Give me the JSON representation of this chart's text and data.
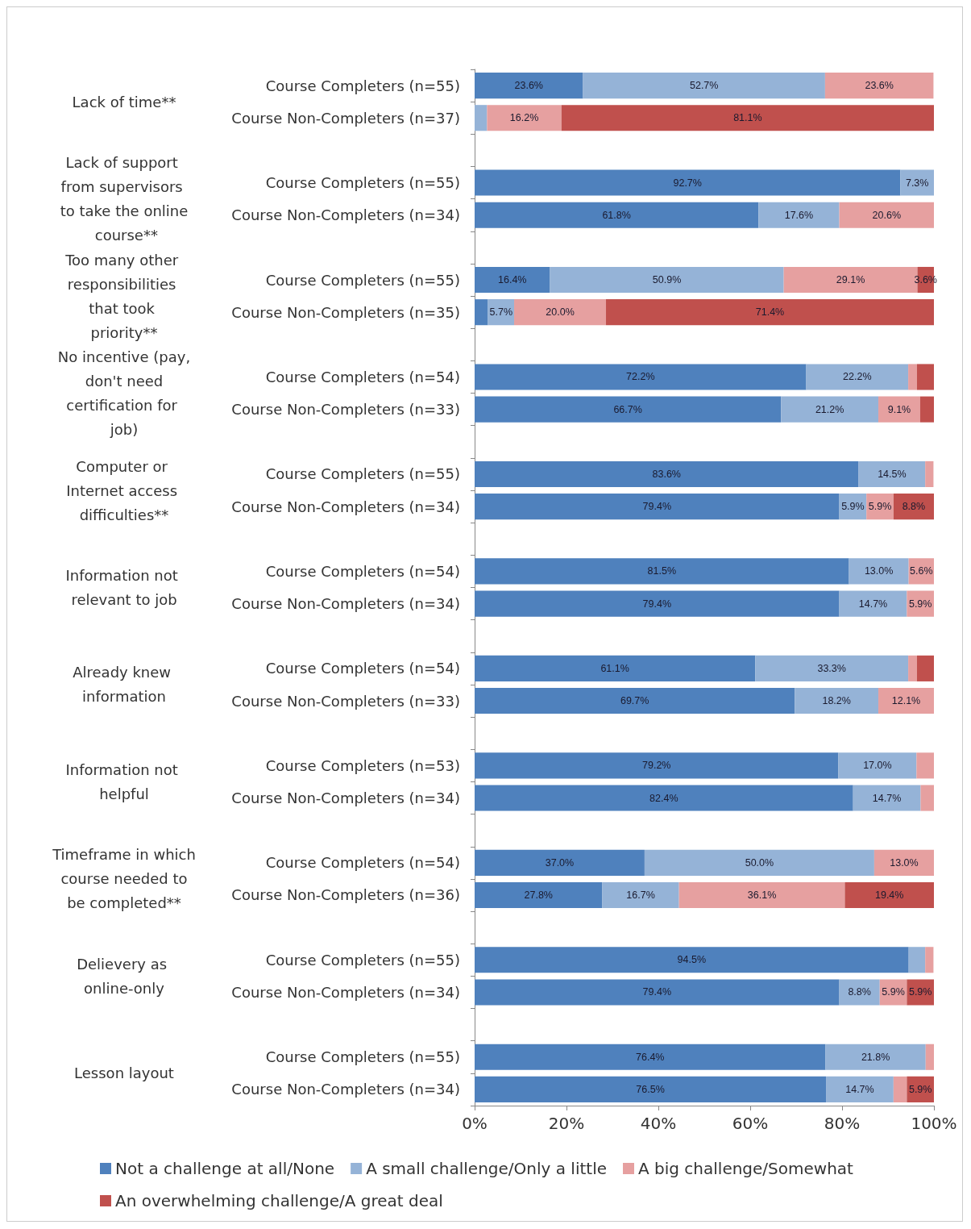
{
  "chart_data": {
    "type": "bar",
    "orientation": "horizontal",
    "stacked": true,
    "categories": [
      "Course Completers (n=55)",
      "Course Non-Completers (n=37)",
      null,
      "Course Completers (n=55)",
      "Course Non-Completers (n=34)",
      null,
      "Course Completers (n=55)",
      "Course Non-Completers (n=35)",
      null,
      "Course Completers (n=54)",
      "Course Non-Completers (n=33)",
      null,
      "Course Completers (n=55)",
      "Course Non-Completers (n=34)",
      null,
      "Course Completers (n=54)",
      "Course Non-Completers (n=34)",
      null,
      "Course Completers (n=54)",
      "Course Non-Completers (n=33)",
      null,
      "Course Completers (n=53)",
      "Course Non-Completers (n=34)",
      null,
      "Course Completers (n=54)",
      "Course Non-Completers (n=36)",
      null,
      "Course Completers (n=55)",
      "Course Non-Completers (n=34)",
      null,
      "Course Completers (n=55)",
      "Course Non-Completers (n=34)"
    ],
    "annotations": [
      "Lack of time**",
      "Lack of support from supervisors to take the online course**",
      "Too many other responsibilities that took priority**",
      "No incentive (pay, don't need certification for job)",
      "Computer or Internet access difficulties**",
      "Information not relevant to job",
      "Already knew information",
      "Information not helpful",
      "Timeframe in which course needed to be completed**",
      "Delievery as online-only",
      "Lesson layout"
    ],
    "series": [
      {
        "name": "Not a challenge at all/None",
        "color": "#4f81bd",
        "values": [
          23.6,
          null,
          null,
          92.7,
          61.8,
          null,
          16.4,
          2.9,
          null,
          72.2,
          66.7,
          null,
          83.6,
          79.4,
          null,
          81.5,
          79.4,
          null,
          61.1,
          69.7,
          null,
          79.2,
          82.4,
          null,
          37.0,
          27.8,
          null,
          94.5,
          79.4,
          null,
          76.4,
          76.5
        ],
        "value_labels": [
          "23.6%",
          null,
          null,
          "92.7%",
          "61.8%",
          null,
          "16.4%",
          null,
          null,
          "72.2%",
          "66.7%",
          null,
          "83.6%",
          "79.4%",
          null,
          "81.5%",
          "79.4%",
          null,
          "61.1%",
          "69.7%",
          null,
          "79.2%",
          "82.4%",
          null,
          "37.0%",
          "27.8%",
          null,
          "94.5%",
          "79.4%",
          null,
          "76.4%",
          "76.5%"
        ]
      },
      {
        "name": "A small challenge/Only a little",
        "color": "#95b3d7",
        "values": [
          52.7,
          2.7,
          null,
          7.3,
          17.6,
          null,
          50.9,
          5.7,
          null,
          22.2,
          21.2,
          null,
          14.5,
          5.9,
          null,
          13.0,
          14.7,
          null,
          33.3,
          18.2,
          null,
          17.0,
          14.7,
          null,
          50.0,
          16.7,
          null,
          3.6,
          8.8,
          null,
          21.8,
          14.7
        ],
        "value_labels": [
          "52.7%",
          null,
          null,
          "7.3%",
          "17.6%",
          null,
          "50.9%",
          "5.7%",
          null,
          "22.2%",
          "21.2%",
          null,
          "14.5%",
          "5.9%",
          null,
          "13.0%",
          "14.7%",
          null,
          "33.3%",
          "18.2%",
          null,
          "17.0%",
          "14.7%",
          null,
          "50.0%",
          "16.7%",
          null,
          null,
          "8.8%",
          null,
          "21.8%",
          "14.7%"
        ]
      },
      {
        "name": "A big challenge/Somewhat",
        "color": "#e6a0a0",
        "values": [
          23.6,
          16.2,
          null,
          null,
          20.6,
          null,
          29.1,
          20.0,
          null,
          1.9,
          9.1,
          null,
          1.8,
          5.9,
          null,
          5.6,
          5.9,
          null,
          1.9,
          12.1,
          null,
          3.8,
          2.9,
          null,
          13.0,
          36.1,
          null,
          1.8,
          5.9,
          null,
          1.8,
          2.9
        ],
        "value_labels": [
          "23.6%",
          "16.2%",
          null,
          null,
          "20.6%",
          null,
          "29.1%",
          "20.0%",
          null,
          null,
          "9.1%",
          null,
          null,
          "5.9%",
          null,
          "5.6%",
          "5.9%",
          null,
          null,
          "12.1%",
          null,
          null,
          null,
          null,
          "13.0%",
          "36.1%",
          null,
          null,
          "5.9%",
          null,
          null,
          null
        ]
      },
      {
        "name": "An overwhelming challenge/A great deal",
        "color": "#c0504d",
        "values": [
          null,
          81.1,
          null,
          null,
          null,
          null,
          3.6,
          71.4,
          null,
          3.7,
          3.0,
          null,
          null,
          8.8,
          null,
          null,
          null,
          null,
          3.7,
          null,
          null,
          null,
          null,
          null,
          null,
          19.4,
          null,
          null,
          5.9,
          null,
          null,
          5.9
        ],
        "value_labels": [
          null,
          "81.1%",
          null,
          null,
          null,
          null,
          "3.6%",
          "71.4%",
          null,
          null,
          null,
          null,
          null,
          "8.8%",
          null,
          null,
          null,
          null,
          null,
          null,
          null,
          null,
          null,
          null,
          null,
          "19.4%",
          null,
          null,
          "5.9%",
          null,
          null,
          "5.9%"
        ]
      }
    ],
    "xlim": [
      0,
      100
    ],
    "xticks": [
      {
        "value": 0,
        "label": "0%"
      },
      {
        "value": 20,
        "label": "20%"
      },
      {
        "value": 40,
        "label": "40%"
      },
      {
        "value": 60,
        "label": "60%"
      },
      {
        "value": 80,
        "label": "80%"
      },
      {
        "value": 100,
        "label": "100%"
      }
    ],
    "grid": false,
    "legend": "bottom"
  }
}
